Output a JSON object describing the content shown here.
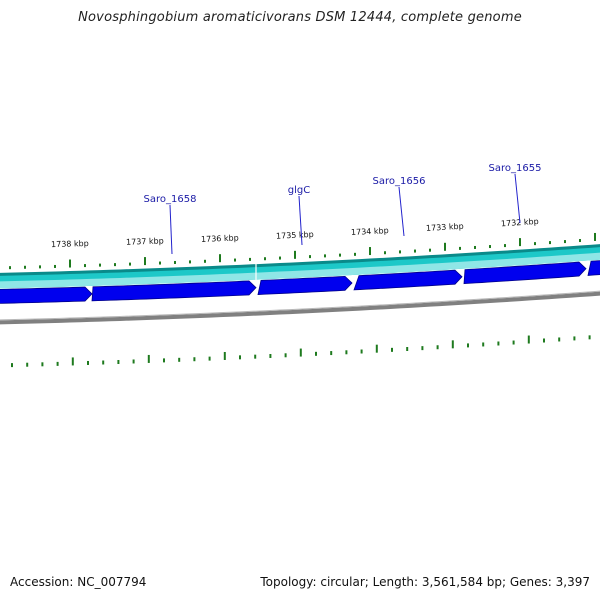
{
  "title": "Novosphingobium aromaticivorans DSM 12444, complete genome",
  "footer": {
    "accession": "Accession: NC_007794",
    "summary": "Topology: circular; Length: 3,561,584 bp; Genes: 3,397"
  },
  "colors": {
    "cds_track": "#0000ee",
    "cds_border": "#00008b",
    "outer_track": "#1dc8c8",
    "outer_track_edge": "#0a8a8a",
    "backbone": "#808080",
    "tick": "#1e7a1e",
    "gene_label": "#1a1aa6",
    "leader_line": "#2222cc"
  },
  "scale": {
    "unit": "kbp",
    "labels": [
      "1738 kbp",
      "1737 kbp",
      "1736 kbp",
      "1735 kbp",
      "1734 kbp",
      "1733 kbp",
      "1732 kbp"
    ],
    "values": [
      1738,
      1737,
      1736,
      1735,
      1734,
      1733,
      1732
    ]
  },
  "genes": [
    {
      "name": "Saro_1658"
    },
    {
      "name": "glgC"
    },
    {
      "name": "Saro_1656"
    },
    {
      "name": "Saro_1655"
    }
  ]
}
